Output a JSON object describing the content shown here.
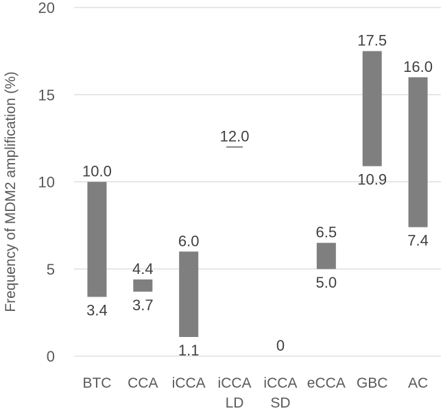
{
  "chart_data": {
    "type": "bar",
    "subtype": "floating-range",
    "title": "",
    "xlabel": "",
    "ylabel": "Frequency of MDM2 amplification (%)",
    "ylim": [
      0,
      20
    ],
    "yticks": [
      0,
      5,
      10,
      15,
      20
    ],
    "grid": true,
    "categories": [
      {
        "label": [
          "BTC"
        ],
        "low": 3.4,
        "high": 10.0,
        "low_label": "3.4",
        "high_label": "10.0"
      },
      {
        "label": [
          "CCA"
        ],
        "low": 3.7,
        "high": 4.4,
        "low_label": "3.7",
        "high_label": "4.4"
      },
      {
        "label": [
          "iCCA"
        ],
        "low": 1.1,
        "high": 6.0,
        "low_label": "1.1",
        "high_label": "6.0"
      },
      {
        "label": [
          "iCCA",
          "LD"
        ],
        "low": 12.0,
        "high": 12.0,
        "low_label": null,
        "high_label": "12.0"
      },
      {
        "label": [
          "iCCA",
          "SD"
        ],
        "low": 0,
        "high": 0,
        "low_label": null,
        "high_label": "0"
      },
      {
        "label": [
          "eCCA"
        ],
        "low": 5.0,
        "high": 6.5,
        "low_label": "5.0",
        "high_label": "6.5"
      },
      {
        "label": [
          "GBC"
        ],
        "low": 10.9,
        "high": 17.5,
        "low_label": "10.9",
        "high_label": "17.5"
      },
      {
        "label": [
          "AC"
        ],
        "low": 7.4,
        "high": 16.0,
        "low_label": "7.4",
        "high_label": "16.0"
      }
    ],
    "colors": {
      "bar": "#7f7f7f",
      "grid": "#d9d9d9",
      "text": "#595959",
      "label": "#404040"
    }
  }
}
